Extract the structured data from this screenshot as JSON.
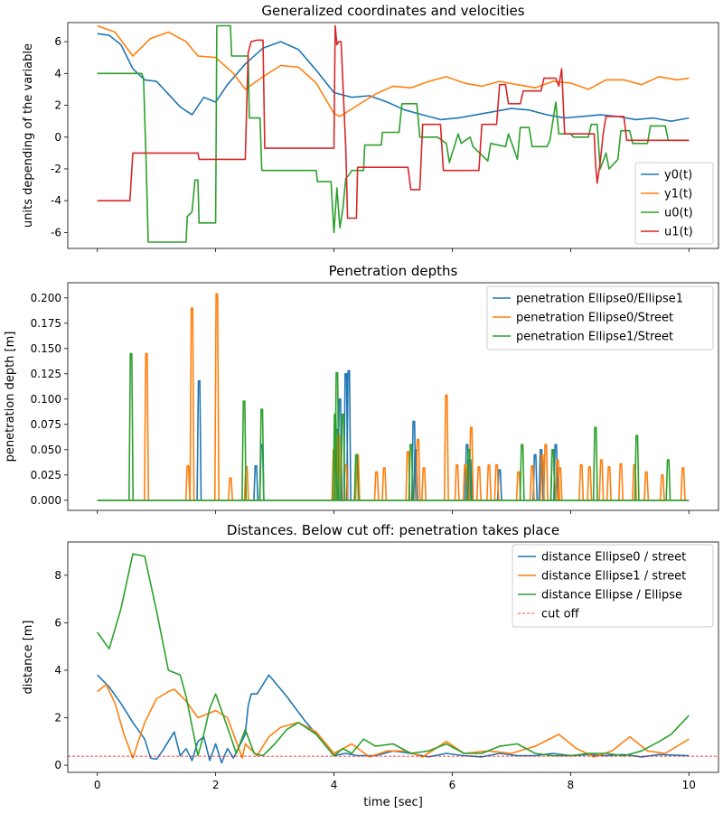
{
  "chart_data": [
    {
      "type": "line",
      "title": "Generalized coordinates and velocities",
      "xlabel": "",
      "ylabel": "units depending of the variable",
      "xlim": [
        -0.5,
        10.5
      ],
      "ylim": [
        -7,
        7.2
      ],
      "xticks": [
        0,
        2,
        4,
        6,
        8,
        10
      ],
      "yticks": [
        -6,
        -4,
        -2,
        0,
        2,
        4,
        6
      ],
      "legend": "lower-right",
      "series": [
        {
          "name": "y0(t)",
          "color": "#1f77b4",
          "x": [
            0,
            0.2,
            0.4,
            0.6,
            0.8,
            1.0,
            1.2,
            1.4,
            1.6,
            1.8,
            2.0,
            2.2,
            2.5,
            2.8,
            3.1,
            3.4,
            3.7,
            4.0,
            4.3,
            4.6,
            4.9,
            5.2,
            5.5,
            5.8,
            6.1,
            6.4,
            6.7,
            7.0,
            7.3,
            7.6,
            7.9,
            8.2,
            8.5,
            8.8,
            9.1,
            9.4,
            9.7,
            10.0
          ],
          "y": [
            6.5,
            6.4,
            5.8,
            4.3,
            3.6,
            3.5,
            2.7,
            1.9,
            1.4,
            2.5,
            2.2,
            3.3,
            4.6,
            5.6,
            6.0,
            5.5,
            4.2,
            2.8,
            2.5,
            2.6,
            2.2,
            1.7,
            1.4,
            1.1,
            1.2,
            1.4,
            1.6,
            1.8,
            1.7,
            1.4,
            1.2,
            1.3,
            1.4,
            1.3,
            1.1,
            1.2,
            1.0,
            1.2
          ]
        },
        {
          "name": "y1(t)",
          "color": "#ff7f0e",
          "x": [
            0,
            0.3,
            0.6,
            0.9,
            1.2,
            1.5,
            1.7,
            2.0,
            2.3,
            2.5,
            2.8,
            3.1,
            3.4,
            3.7,
            4.0,
            4.1,
            4.4,
            4.7,
            5.0,
            5.3,
            5.6,
            5.9,
            6.2,
            6.5,
            6.8,
            7.1,
            7.4,
            7.7,
            8.0,
            8.3,
            8.6,
            8.9,
            9.2,
            9.5,
            9.8,
            10.0
          ],
          "y": [
            7.0,
            6.6,
            5.1,
            6.2,
            6.6,
            6.0,
            5.1,
            5.0,
            4.0,
            3.0,
            3.8,
            4.5,
            4.4,
            3.4,
            1.5,
            1.3,
            2.0,
            2.7,
            3.2,
            3.1,
            3.5,
            3.8,
            3.4,
            3.2,
            3.5,
            3.3,
            3.1,
            3.5,
            3.4,
            3.0,
            3.6,
            3.6,
            3.3,
            3.8,
            3.6,
            3.7
          ]
        },
        {
          "name": "u0(t)",
          "color": "#2ca02c",
          "x": [
            0,
            0.75,
            0.78,
            0.82,
            0.86,
            1.5,
            1.52,
            1.6,
            1.65,
            1.7,
            1.72,
            1.8,
            2.0,
            2.02,
            2.25,
            2.27,
            2.55,
            2.57,
            2.75,
            2.78,
            3.7,
            3.72,
            3.95,
            4.0,
            4.05,
            4.1,
            4.15,
            4.2,
            4.25,
            4.3,
            4.5,
            4.52,
            4.8,
            4.82,
            5.1,
            5.15,
            5.4,
            5.45,
            5.7,
            5.75,
            5.9,
            5.95,
            6.1,
            6.15,
            6.3,
            6.35,
            6.6,
            6.65,
            6.9,
            6.95,
            7.1,
            7.15,
            7.3,
            7.35,
            7.6,
            7.65,
            7.75,
            7.8,
            8.0,
            8.05,
            8.3,
            8.35,
            8.45,
            8.5,
            8.6,
            8.65,
            8.8,
            8.85,
            9.0,
            9.05,
            9.3,
            9.35,
            9.6,
            9.65,
            10.0
          ],
          "y": [
            4.0,
            4.0,
            3.7,
            -1.0,
            -6.6,
            -6.6,
            -5.0,
            -4.7,
            -2.7,
            -2.7,
            -5.4,
            -5.4,
            -5.4,
            7.0,
            7.0,
            5.1,
            5.1,
            1.2,
            1.2,
            -2.1,
            -2.1,
            -2.8,
            -2.8,
            -6.0,
            -3.2,
            -5.7,
            -4.5,
            -2.6,
            -2.4,
            -2.1,
            -2.1,
            -0.5,
            -0.5,
            0.3,
            0.3,
            2.1,
            2.1,
            0.0,
            0.0,
            0.0,
            -0.4,
            -1.6,
            0.2,
            -0.4,
            0.0,
            -0.6,
            -1.5,
            -0.4,
            -0.6,
            0.2,
            -1.4,
            0.6,
            0.6,
            -0.6,
            -0.6,
            -0.2,
            2.2,
            0.2,
            0.2,
            0.0,
            0.0,
            0.8,
            0.8,
            -2.0,
            -1.0,
            -2.0,
            -1.4,
            0.4,
            0.4,
            -0.4,
            -0.4,
            0.7,
            0.7,
            -0.2,
            -0.2
          ]
        },
        {
          "name": "u1(t)",
          "color": "#d62728",
          "x": [
            0,
            0.55,
            0.6,
            1.7,
            1.72,
            2.5,
            2.55,
            2.6,
            2.7,
            2.8,
            2.83,
            4.0,
            4.02,
            4.05,
            4.08,
            4.12,
            4.2,
            4.23,
            4.38,
            4.4,
            5.25,
            5.3,
            5.45,
            5.5,
            5.8,
            5.85,
            6.45,
            6.5,
            6.75,
            6.8,
            6.9,
            6.95,
            7.15,
            7.2,
            7.5,
            7.55,
            7.75,
            7.8,
            7.85,
            7.9,
            8.4,
            8.42,
            8.45,
            8.5,
            8.55,
            8.6,
            8.9,
            8.95,
            9.9,
            10.0
          ],
          "y": [
            -4.0,
            -4.0,
            -1.0,
            -1.0,
            -1.4,
            -1.4,
            5.3,
            6.0,
            6.1,
            6.1,
            -0.7,
            -0.7,
            7.0,
            5.8,
            6.0,
            6.0,
            -0.7,
            -5.1,
            -5.1,
            -1.9,
            -1.9,
            -3.3,
            -3.3,
            0.8,
            0.8,
            -2.1,
            -2.1,
            0.8,
            0.8,
            3.3,
            3.3,
            2.1,
            2.1,
            2.9,
            2.9,
            3.7,
            3.7,
            3.2,
            4.3,
            0.2,
            0.2,
            -1.6,
            -2.9,
            -1.6,
            0.2,
            1.3,
            1.3,
            -0.2,
            -0.2,
            -0.2
          ]
        }
      ]
    },
    {
      "type": "line",
      "title": "Penetration depths",
      "xlabel": "",
      "ylabel": "penetration depth [m]",
      "xlim": [
        -0.5,
        10.5
      ],
      "ylim": [
        -0.01,
        0.215
      ],
      "xticks": [
        0,
        2,
        4,
        6,
        8,
        10
      ],
      "yticks": [
        "0.000",
        "0.025",
        "0.050",
        "0.075",
        "0.100",
        "0.125",
        "0.150",
        "0.175",
        "0.200"
      ],
      "legend": "top-right",
      "series": [
        {
          "name": "penetration Ellipse0/Ellipse1",
          "color": "#1f77b4",
          "spikes": [
            [
              1.72,
              0.118
            ],
            [
              2.68,
              0.034
            ],
            [
              2.78,
              0.055
            ],
            [
              4.05,
              0.07
            ],
            [
              4.1,
              0.1
            ],
            [
              4.2,
              0.125
            ],
            [
              4.25,
              0.128
            ],
            [
              5.35,
              0.078
            ],
            [
              5.38,
              0.05
            ],
            [
              6.25,
              0.055
            ],
            [
              6.3,
              0.04
            ],
            [
              6.8,
              0.03
            ],
            [
              7.4,
              0.045
            ],
            [
              7.5,
              0.05
            ],
            [
              7.7,
              0.05
            ],
            [
              7.75,
              0.055
            ]
          ]
        },
        {
          "name": "penetration Ellipse0/Street",
          "color": "#ff7f0e",
          "spikes": [
            [
              0.83,
              0.145
            ],
            [
              1.53,
              0.034
            ],
            [
              1.6,
              0.19
            ],
            [
              2.02,
              0.204
            ],
            [
              2.25,
              0.022
            ],
            [
              2.52,
              0.033
            ],
            [
              4.0,
              0.05
            ],
            [
              4.08,
              0.065
            ],
            [
              4.2,
              0.035
            ],
            [
              4.4,
              0.045
            ],
            [
              4.72,
              0.028
            ],
            [
              4.85,
              0.032
            ],
            [
              5.25,
              0.048
            ],
            [
              5.42,
              0.06
            ],
            [
              5.52,
              0.032
            ],
            [
              5.9,
              0.104
            ],
            [
              6.08,
              0.035
            ],
            [
              6.22,
              0.035
            ],
            [
              6.32,
              0.072
            ],
            [
              6.45,
              0.033
            ],
            [
              6.62,
              0.035
            ],
            [
              6.75,
              0.035
            ],
            [
              7.12,
              0.028
            ],
            [
              7.35,
              0.034
            ],
            [
              7.52,
              0.045
            ],
            [
              7.58,
              0.055
            ],
            [
              7.78,
              0.04
            ],
            [
              7.82,
              0.032
            ],
            [
              8.18,
              0.035
            ],
            [
              8.32,
              0.033
            ],
            [
              8.52,
              0.04
            ],
            [
              8.65,
              0.033
            ],
            [
              8.85,
              0.036
            ],
            [
              9.08,
              0.035
            ],
            [
              9.28,
              0.028
            ],
            [
              9.55,
              0.025
            ],
            [
              9.9,
              0.032
            ]
          ]
        },
        {
          "name": "penetration Ellipse1/Street",
          "color": "#2ca02c",
          "spikes": [
            [
              0.57,
              0.145
            ],
            [
              2.48,
              0.098
            ],
            [
              2.78,
              0.09
            ],
            [
              4.02,
              0.085
            ],
            [
              4.05,
              0.126
            ],
            [
              4.15,
              0.085
            ],
            [
              4.38,
              0.045
            ],
            [
              5.3,
              0.055
            ],
            [
              6.28,
              0.05
            ],
            [
              7.18,
              0.055
            ],
            [
              7.7,
              0.05
            ],
            [
              8.42,
              0.072
            ],
            [
              9.12,
              0.064
            ],
            [
              9.65,
              0.04
            ]
          ]
        }
      ]
    },
    {
      "type": "line",
      "title": "Distances. Below cut off: penetration takes place",
      "xlabel": "time [sec]",
      "ylabel": "distance [m]",
      "xlim": [
        -0.5,
        10.5
      ],
      "ylim": [
        -0.3,
        9.4
      ],
      "xticks": [
        0,
        2,
        4,
        6,
        8,
        10
      ],
      "yticks": [
        0,
        2,
        4,
        6,
        8
      ],
      "legend": "top-right",
      "cutoff": {
        "name": "cut off",
        "value": 0.38,
        "color": "#ff0000"
      },
      "series": [
        {
          "name": "distance Ellipse0 / street",
          "color": "#1f77b4",
          "x": [
            0,
            0.2,
            0.4,
            0.6,
            0.8,
            0.9,
            1.0,
            1.1,
            1.3,
            1.4,
            1.5,
            1.6,
            1.7,
            1.8,
            1.9,
            2.0,
            2.1,
            2.2,
            2.3,
            2.5,
            2.55,
            2.6,
            2.7,
            2.9,
            3.2,
            3.5,
            3.8,
            4.0,
            4.2,
            4.4,
            4.7,
            5.0,
            5.3,
            5.6,
            5.9,
            6.2,
            6.5,
            6.8,
            7.1,
            7.4,
            7.7,
            8.0,
            8.3,
            8.6,
            8.9,
            9.2,
            9.5,
            10.0
          ],
          "y": [
            3.8,
            3.3,
            2.6,
            1.8,
            1.1,
            0.3,
            0.25,
            0.6,
            1.4,
            0.4,
            0.7,
            0.2,
            1.0,
            1.2,
            0.2,
            0.9,
            0.1,
            0.7,
            0.3,
            1.3,
            2.5,
            3.0,
            3.0,
            3.8,
            2.9,
            1.9,
            1.0,
            0.4,
            0.5,
            0.4,
            0.4,
            0.6,
            0.5,
            0.35,
            0.5,
            0.4,
            0.35,
            0.5,
            0.4,
            0.4,
            0.5,
            0.4,
            0.45,
            0.4,
            0.45,
            0.35,
            0.45,
            0.4
          ]
        },
        {
          "name": "distance Ellipse1 / street",
          "color": "#ff7f0e",
          "x": [
            0,
            0.15,
            0.3,
            0.45,
            0.6,
            0.8,
            1.0,
            1.2,
            1.3,
            1.5,
            1.7,
            1.8,
            1.9,
            2.0,
            2.2,
            2.45,
            2.5,
            2.7,
            2.9,
            3.1,
            3.4,
            3.7,
            4.0,
            4.3,
            4.6,
            4.9,
            5.2,
            5.5,
            5.9,
            6.2,
            6.6,
            7.0,
            7.4,
            7.8,
            8.1,
            8.4,
            8.7,
            9.0,
            9.3,
            9.6,
            10.0
          ],
          "y": [
            3.1,
            3.4,
            2.6,
            1.3,
            0.3,
            1.8,
            2.8,
            3.1,
            3.2,
            2.7,
            2.0,
            2.1,
            2.2,
            2.3,
            2.0,
            0.3,
            0.9,
            0.4,
            1.2,
            1.6,
            1.8,
            1.4,
            0.5,
            0.9,
            0.35,
            0.6,
            0.6,
            0.35,
            1.0,
            0.5,
            0.6,
            0.5,
            0.8,
            1.3,
            0.7,
            0.35,
            0.6,
            1.2,
            0.6,
            0.5,
            1.1
          ]
        },
        {
          "name": "distance Ellipse / Ellipse",
          "color": "#2ca02c",
          "x": [
            0,
            0.2,
            0.4,
            0.6,
            0.8,
            1.0,
            1.2,
            1.3,
            1.4,
            1.5,
            1.7,
            1.8,
            1.9,
            2.0,
            2.2,
            2.35,
            2.5,
            2.65,
            2.8,
            3.0,
            3.2,
            3.4,
            3.7,
            4.0,
            4.15,
            4.3,
            4.5,
            4.7,
            5.0,
            5.3,
            5.6,
            5.9,
            6.2,
            6.5,
            6.8,
            7.1,
            7.4,
            7.7,
            8.0,
            8.3,
            8.6,
            8.9,
            9.2,
            9.5,
            9.7,
            10.0
          ],
          "y": [
            5.6,
            4.9,
            6.6,
            8.9,
            8.8,
            6.5,
            4.0,
            3.9,
            3.8,
            2.9,
            0.4,
            1.3,
            2.4,
            3.0,
            1.6,
            0.5,
            1.5,
            0.5,
            0.4,
            0.9,
            1.5,
            1.8,
            1.3,
            0.4,
            0.7,
            0.5,
            1.1,
            0.8,
            0.9,
            0.5,
            0.6,
            0.9,
            0.5,
            0.5,
            0.8,
            0.9,
            0.5,
            0.4,
            0.4,
            0.5,
            0.5,
            0.4,
            0.6,
            1.0,
            1.3,
            2.1
          ]
        }
      ]
    }
  ]
}
